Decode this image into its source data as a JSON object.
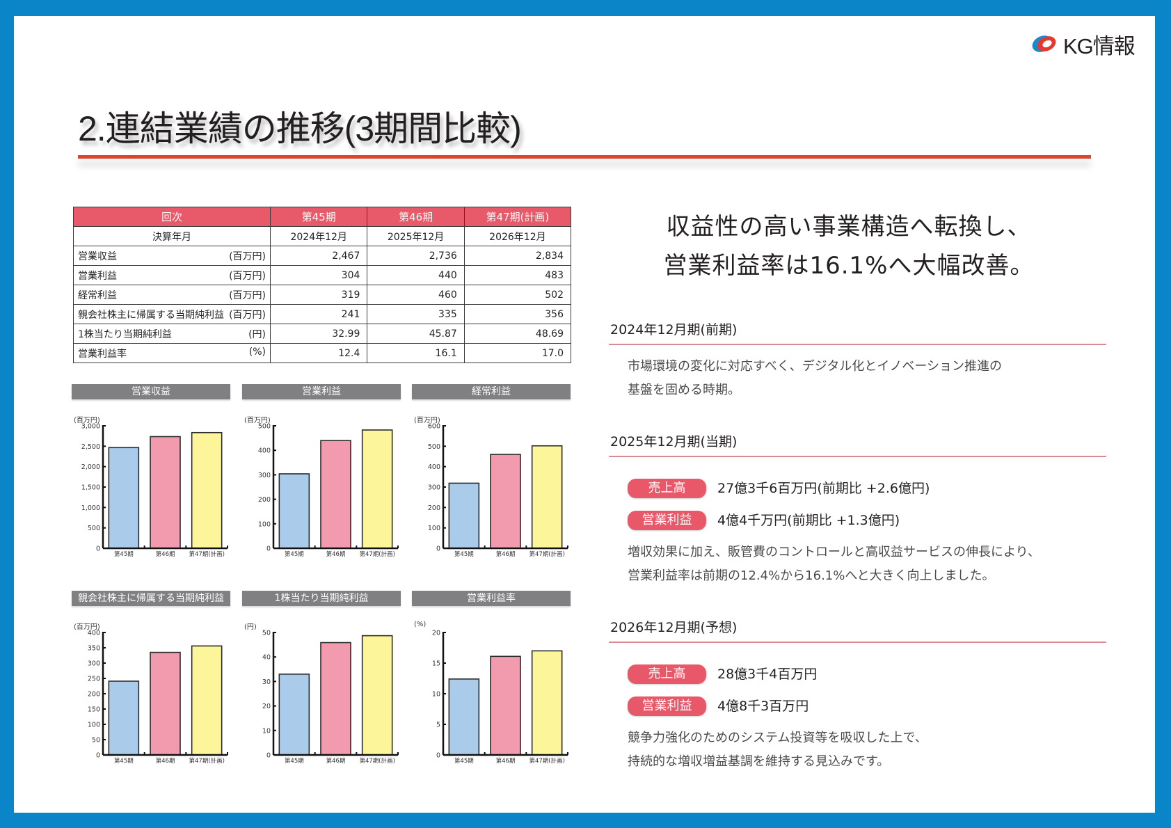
{
  "brand": {
    "logo_text": "KG情報",
    "colors": {
      "frame": "#0a86c8",
      "accent_red": "#e85a69",
      "rule_red": "#d9452f",
      "header_gray": "#808083"
    }
  },
  "title": "2.連結業績の推移(3期間比較)",
  "table": {
    "header": [
      "回次",
      "第45期",
      "第46期",
      "第47期(計画)"
    ],
    "subheader": [
      "決算年月",
      "2024年12月",
      "2025年12月",
      "2026年12月"
    ],
    "rows": [
      {
        "label": "営業収益",
        "unit": "(百万円)",
        "values": [
          "2,467",
          "2,736",
          "2,834"
        ]
      },
      {
        "label": "営業利益",
        "unit": "(百万円)",
        "values": [
          "304",
          "440",
          "483"
        ]
      },
      {
        "label": "経常利益",
        "unit": "(百万円)",
        "values": [
          "319",
          "460",
          "502"
        ]
      },
      {
        "label": "親会社株主に帰属する当期純利益",
        "unit": "(百万円)",
        "values": [
          "241",
          "335",
          "356"
        ]
      },
      {
        "label": "1株当たり当期純利益",
        "unit": "(円)",
        "values": [
          "32.99",
          "45.87",
          "48.69"
        ]
      },
      {
        "label": "営業利益率",
        "unit": "(%)",
        "values": [
          "12.4",
          "16.1",
          "17.0"
        ]
      }
    ]
  },
  "chart_data": [
    {
      "type": "bar",
      "title": "営業収益",
      "ylabel": "(百万円)",
      "categories": [
        "第45期",
        "第46期",
        "第47期(計画)"
      ],
      "values": [
        2467,
        2736,
        2834
      ],
      "ylim": [
        0,
        3000
      ],
      "yticks": [
        0,
        500,
        1000,
        1500,
        2000,
        2500,
        3000
      ],
      "ytick_labels": [
        "0",
        "500",
        "1,000",
        "1,500",
        "2,000",
        "2,500",
        "3,000"
      ],
      "colors": [
        "#aacbea",
        "#f29aae",
        "#fdf599"
      ],
      "grid": false
    },
    {
      "type": "bar",
      "title": "営業利益",
      "ylabel": "(百万円)",
      "categories": [
        "第45期",
        "第46期",
        "第47期(計画)"
      ],
      "values": [
        304,
        440,
        483
      ],
      "ylim": [
        0,
        500
      ],
      "yticks": [
        0,
        100,
        200,
        300,
        400,
        500
      ],
      "ytick_labels": [
        "0",
        "100",
        "200",
        "300",
        "400",
        "500"
      ],
      "colors": [
        "#aacbea",
        "#f29aae",
        "#fdf599"
      ],
      "grid": false
    },
    {
      "type": "bar",
      "title": "経常利益",
      "ylabel": "(百万円)",
      "categories": [
        "第45期",
        "第46期",
        "第47期(計画)"
      ],
      "values": [
        319,
        460,
        502
      ],
      "ylim": [
        0,
        600
      ],
      "yticks": [
        0,
        100,
        200,
        300,
        400,
        500,
        600
      ],
      "ytick_labels": [
        "0",
        "100",
        "200",
        "300",
        "400",
        "500",
        "600"
      ],
      "colors": [
        "#aacbea",
        "#f29aae",
        "#fdf599"
      ],
      "grid": false
    },
    {
      "type": "bar",
      "title": "親会社株主に帰属する当期純利益",
      "ylabel": "(百万円)",
      "categories": [
        "第45期",
        "第46期",
        "第47期(計画)"
      ],
      "values": [
        241,
        335,
        356
      ],
      "ylim": [
        0,
        400
      ],
      "yticks": [
        0,
        50,
        100,
        150,
        200,
        250,
        300,
        350,
        400
      ],
      "ytick_labels": [
        "0",
        "50",
        "100",
        "150",
        "200",
        "250",
        "300",
        "350",
        "400"
      ],
      "colors": [
        "#aacbea",
        "#f29aae",
        "#fdf599"
      ],
      "grid": false
    },
    {
      "type": "bar",
      "title": "1株当たり当期純利益",
      "ylabel": "(円)",
      "categories": [
        "第45期",
        "第46期",
        "第47期(計画)"
      ],
      "values": [
        32.99,
        45.87,
        48.69
      ],
      "ylim": [
        0,
        50
      ],
      "yticks": [
        0,
        10,
        20,
        30,
        40,
        50
      ],
      "ytick_labels": [
        "0",
        "10",
        "20",
        "30",
        "40",
        "50"
      ],
      "colors": [
        "#aacbea",
        "#f29aae",
        "#fdf599"
      ],
      "grid": false
    },
    {
      "type": "bar",
      "title": "営業利益率",
      "ylabel": "(%)",
      "categories": [
        "第45期",
        "第46期",
        "第47期(計画)"
      ],
      "values": [
        12.4,
        16.1,
        17.0
      ],
      "ylim": [
        0,
        20
      ],
      "yticks": [
        0,
        5,
        10,
        15,
        20
      ],
      "ytick_labels": [
        "0",
        "5",
        "10",
        "15",
        "20"
      ],
      "colors": [
        "#aacbea",
        "#f29aae",
        "#fdf599"
      ],
      "grid": false
    }
  ],
  "headline": {
    "line1": "収益性の高い事業構造へ転換し、",
    "line2": "営業利益率は16.1%へ大幅改善。"
  },
  "sections": {
    "fy2024": {
      "title": "2024年12月期(前期)",
      "line1": "市場環境の変化に対応すべく、デジタル化とイノベーション推進の",
      "line2": "基盤を固める時期。"
    },
    "fy2025": {
      "title": "2025年12月期(当期)",
      "sales_label": "売上高",
      "sales_value": "27億3千6百万円(前期比 +2.6億円)",
      "op_label": "営業利益",
      "op_value": "4億4千万円(前期比 +1.3億円)",
      "line1": "増収効果に加え、販管費のコントロールと高収益サービスの伸長により、",
      "line2": "営業利益率は前期の12.4%から16.1%へと大きく向上しました。"
    },
    "fy2026": {
      "title": "2026年12月期(予想)",
      "sales_label": "売上高",
      "sales_value": "28億3千4百万円",
      "op_label": "営業利益",
      "op_value": "4億8千3百万円",
      "line1": "競争力強化のためのシステム投資等を吸収した上で、",
      "line2": "持続的な増収増益基調を維持する見込みです。"
    }
  }
}
